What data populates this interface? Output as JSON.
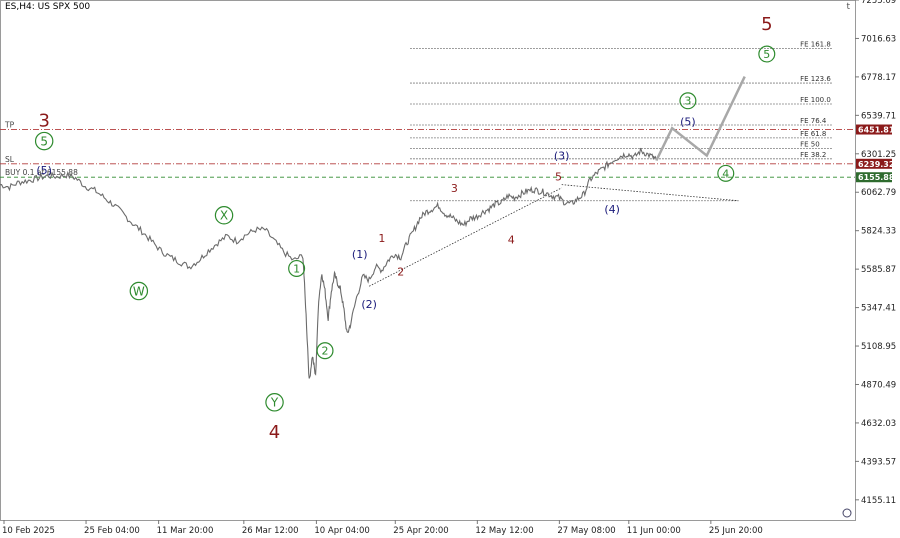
{
  "header": {
    "symbol_label": "ES,H4:  US SPX 500",
    "corner_glyph": "t"
  },
  "chart_data": {
    "type": "line",
    "title": "ES,H4:  US SPX 500",
    "y_ticks": [
      "7255.09",
      "7016.63",
      "6778.17",
      "6539.71",
      "6301.25",
      "6062.79",
      "5824.33",
      "5585.87",
      "5347.41",
      "5108.95",
      "4870.49",
      "4632.03",
      "4393.57",
      "4155.11"
    ],
    "y_tick_values": [
      7255.09,
      7016.63,
      6778.17,
      6539.71,
      6301.25,
      6062.79,
      5824.33,
      5585.87,
      5347.41,
      5108.95,
      4870.49,
      4632.03,
      4393.57,
      4155.11
    ],
    "x_ticks": [
      "10 Feb 2025",
      "25 Feb 04:00",
      "11 Mar 20:00",
      "26 Mar 12:00",
      "10 Apr 04:00",
      "25 Apr 20:00",
      "12 May 12:00",
      "27 May 08:00",
      "11 Jun 00:00",
      "25 Jun 20:00"
    ],
    "ylim": [
      4030,
      7255.09
    ],
    "price_path": [
      [
        0,
        6110
      ],
      [
        3,
        6095
      ],
      [
        6,
        6125
      ],
      [
        9,
        6135
      ],
      [
        12,
        6150
      ],
      [
        15,
        6165
      ],
      [
        18,
        6160
      ],
      [
        21,
        6170
      ],
      [
        24,
        6150
      ],
      [
        27,
        6100
      ],
      [
        30,
        6075
      ],
      [
        33,
        6030
      ],
      [
        36,
        5985
      ],
      [
        39,
        5930
      ],
      [
        42,
        5870
      ],
      [
        45,
        5820
      ],
      [
        48,
        5760
      ],
      [
        51,
        5700
      ],
      [
        54,
        5660
      ],
      [
        57,
        5630
      ],
      [
        60,
        5600
      ],
      [
        63,
        5640
      ],
      [
        66,
        5700
      ],
      [
        69,
        5750
      ],
      [
        72,
        5790
      ],
      [
        75,
        5760
      ],
      [
        78,
        5800
      ],
      [
        81,
        5830
      ],
      [
        84,
        5830
      ],
      [
        87,
        5760
      ],
      [
        90,
        5690
      ],
      [
        93,
        5640
      ],
      [
        96,
        5670
      ],
      [
        97,
        5300
      ],
      [
        98,
        4890
      ],
      [
        99,
        5050
      ],
      [
        100,
        4920
      ],
      [
        101,
        5400
      ],
      [
        102,
        5560
      ],
      [
        103,
        5450
      ],
      [
        104,
        5280
      ],
      [
        105,
        5450
      ],
      [
        106,
        5550
      ],
      [
        107,
        5500
      ],
      [
        108,
        5450
      ],
      [
        109,
        5330
      ],
      [
        110,
        5180
      ],
      [
        111,
        5240
      ],
      [
        113,
        5410
      ],
      [
        115,
        5540
      ],
      [
        117,
        5520
      ],
      [
        119,
        5600
      ],
      [
        121,
        5580
      ],
      [
        123,
        5640
      ],
      [
        125,
        5680
      ],
      [
        127,
        5660
      ],
      [
        129,
        5750
      ],
      [
        131,
        5820
      ],
      [
        133,
        5900
      ],
      [
        135,
        5940
      ],
      [
        137,
        5960
      ],
      [
        139,
        5980
      ],
      [
        141,
        5930
      ],
      [
        143,
        5910
      ],
      [
        145,
        5880
      ],
      [
        147,
        5860
      ],
      [
        149,
        5900
      ],
      [
        151,
        5910
      ],
      [
        153,
        5940
      ],
      [
        155,
        5960
      ],
      [
        157,
        5990
      ],
      [
        159,
        6000
      ],
      [
        161,
        6040
      ],
      [
        163,
        6030
      ],
      [
        165,
        6050
      ],
      [
        167,
        6070
      ],
      [
        169,
        6080
      ],
      [
        171,
        6070
      ],
      [
        173,
        6060
      ],
      [
        175,
        6040
      ],
      [
        177,
        6030
      ],
      [
        179,
        6000
      ],
      [
        181,
        5990
      ],
      [
        183,
        6020
      ],
      [
        185,
        6050
      ],
      [
        187,
        6140
      ],
      [
        189,
        6180
      ],
      [
        191,
        6210
      ],
      [
        193,
        6240
      ],
      [
        195,
        6270
      ],
      [
        197,
        6290
      ],
      [
        199,
        6300
      ],
      [
        201,
        6280
      ],
      [
        203,
        6320
      ],
      [
        205,
        6300
      ],
      [
        207,
        6280
      ],
      [
        208,
        6260
      ]
    ],
    "x_max": 270,
    "forecast_path": [
      [
        208,
        6260
      ],
      [
        213,
        6460
      ],
      [
        224,
        6290
      ],
      [
        236,
        6780
      ]
    ],
    "hlines": [
      {
        "label": "TP",
        "value": 6451.81,
        "style": "dashdot",
        "color": "#b23a3a",
        "badge": "6451.81",
        "badge_color": "#8b1a1a"
      },
      {
        "label": "SL",
        "value": 6239.32,
        "style": "dashdot",
        "color": "#b23a3a",
        "badge": "6239.32",
        "badge_color": "#8b1a1a"
      },
      {
        "label": "BUY 0.1 at 6155.88",
        "value": 6155.88,
        "style": "dash",
        "color": "#2e8b2e",
        "badge": "6155.88",
        "badge_color": "#2e6b2e"
      }
    ],
    "fibo": [
      {
        "label": "FE 161.8",
        "value": 6955
      },
      {
        "label": "FE 123.6",
        "value": 6740
      },
      {
        "label": "FE 100.0",
        "value": 6610
      },
      {
        "label": "FE 76.4",
        "value": 6480
      },
      {
        "label": "FE 61.8",
        "value": 6400
      },
      {
        "label": "FE 50",
        "value": 6335
      },
      {
        "label": "FE 38.2",
        "value": 6270
      }
    ],
    "fibo_base": 6010,
    "wave_labels": [
      {
        "text": "3",
        "x": 14,
        "y": 6510,
        "color": "#8b1a1a",
        "size": 18,
        "circle": false
      },
      {
        "text": "5",
        "x": 14,
        "y": 6380,
        "color": "#2e8b2e",
        "size": 12,
        "circle": true
      },
      {
        "text": "(5)",
        "x": 14,
        "y": 6200,
        "color": "#1a1a7a",
        "size": 11,
        "circle": false
      },
      {
        "text": "W",
        "x": 44,
        "y": 5450,
        "color": "#2e8b2e",
        "size": 12,
        "circle": true
      },
      {
        "text": "X",
        "x": 71,
        "y": 5920,
        "color": "#2e8b2e",
        "size": 12,
        "circle": true
      },
      {
        "text": "Y",
        "x": 87,
        "y": 4760,
        "color": "#2e8b2e",
        "size": 12,
        "circle": true
      },
      {
        "text": "4",
        "x": 87,
        "y": 4580,
        "color": "#8b1a1a",
        "size": 18,
        "circle": false
      },
      {
        "text": "1",
        "x": 94,
        "y": 5590,
        "color": "#2e8b2e",
        "size": 11,
        "circle": true
      },
      {
        "text": "2",
        "x": 103,
        "y": 5080,
        "color": "#2e8b2e",
        "size": 11,
        "circle": true
      },
      {
        "text": "(1)",
        "x": 114,
        "y": 5680,
        "color": "#1a1a7a",
        "size": 11,
        "circle": false
      },
      {
        "text": "(2)",
        "x": 117,
        "y": 5370,
        "color": "#1a1a7a",
        "size": 11,
        "circle": false
      },
      {
        "text": "1",
        "x": 121,
        "y": 5780,
        "color": "#8b1a1a",
        "size": 11,
        "circle": false
      },
      {
        "text": "2",
        "x": 127,
        "y": 5570,
        "color": "#8b1a1a",
        "size": 11,
        "circle": false
      },
      {
        "text": "3",
        "x": 144,
        "y": 6090,
        "color": "#8b1a1a",
        "size": 11,
        "circle": false
      },
      {
        "text": "4",
        "x": 162,
        "y": 5770,
        "color": "#8b1a1a",
        "size": 11,
        "circle": false
      },
      {
        "text": "5",
        "x": 177,
        "y": 6160,
        "color": "#8b1a1a",
        "size": 11,
        "circle": false
      },
      {
        "text": "(3)",
        "x": 178,
        "y": 6290,
        "color": "#1a1a7a",
        "size": 11,
        "circle": false
      },
      {
        "text": "(4)",
        "x": 194,
        "y": 5960,
        "color": "#1a1a7a",
        "size": 11,
        "circle": false
      },
      {
        "text": "(5)",
        "x": 218,
        "y": 6500,
        "color": "#1a1a7a",
        "size": 11,
        "circle": false
      },
      {
        "text": "3",
        "x": 218,
        "y": 6630,
        "color": "#2e8b2e",
        "size": 11,
        "circle": true
      },
      {
        "text": "4",
        "x": 230,
        "y": 6180,
        "color": "#2e8b2e",
        "size": 11,
        "circle": true
      },
      {
        "text": "5",
        "x": 243,
        "y": 6920,
        "color": "#2e8b2e",
        "size": 11,
        "circle": true
      },
      {
        "text": "5",
        "x": 243,
        "y": 7110,
        "color": "#8b1a1a",
        "size": 18,
        "circle": false
      }
    ],
    "trend_line": [
      [
        117,
        5480
      ],
      [
        178,
        6090
      ]
    ],
    "channel_line": [
      [
        178,
        6110
      ],
      [
        234,
        6010
      ]
    ],
    "grid": false
  }
}
